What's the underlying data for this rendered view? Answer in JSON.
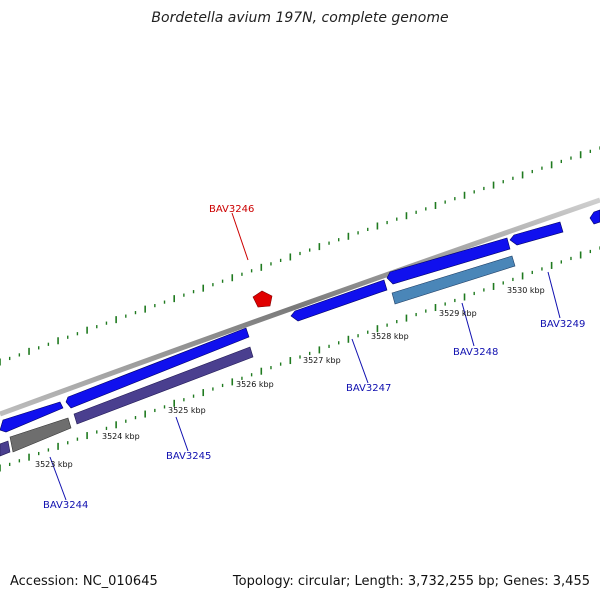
{
  "title": "Bordetella avium 197N, complete genome",
  "footer": {
    "accession": "Accession: NC_010645",
    "summary": "Topology: circular; Length: 3,732,255 bp; Genes: 3,455"
  },
  "colors": {
    "background": "#ffffff",
    "backbone": "#8a8a8a",
    "tick_green": "#1f7a1f",
    "gene_forward": "#1010ee",
    "gene_reverse": "#4a3f8f",
    "gene_gray": "#6e6e6e",
    "gene_steel": "#4a86b8",
    "highlight": "#e00000",
    "label_blue": "#1010b0",
    "label_red": "#cc0000"
  },
  "scale_labels": [
    "3523 kbp",
    "3524 kbp",
    "3525 kbp",
    "3526 kbp",
    "3527 kbp",
    "3528 kbp",
    "3529 kbp",
    "3530 kbp"
  ],
  "gene_labels": [
    {
      "id": "BAV3244",
      "color": "blue"
    },
    {
      "id": "BAV3245",
      "color": "blue"
    },
    {
      "id": "BAV3246",
      "color": "red"
    },
    {
      "id": "BAV3247",
      "color": "blue"
    },
    {
      "id": "BAV3248",
      "color": "blue"
    },
    {
      "id": "BAV3249",
      "color": "blue"
    }
  ]
}
